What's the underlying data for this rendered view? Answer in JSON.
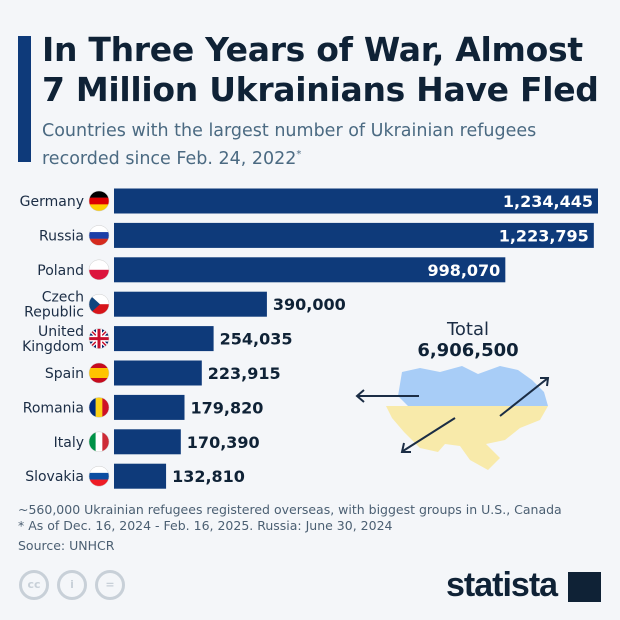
{
  "header": {
    "title_line1": "In Three Years of War, Almost",
    "title_line2": "7 Million Ukrainians Have Fled",
    "subtitle_line1": "Countries with the largest number of Ukrainian refugees",
    "subtitle_line2": "recorded since Feb. 24, 2022",
    "subtitle_mark": "*"
  },
  "chart_data": {
    "type": "bar",
    "orientation": "horizontal",
    "categories": [
      "Germany",
      "Russia",
      "Poland",
      "Czech Republic",
      "United Kingdom",
      "Spain",
      "Romania",
      "Italy",
      "Slovakia"
    ],
    "values": [
      1234445,
      1223795,
      998070,
      390000,
      254035,
      223915,
      179820,
      170390,
      132810
    ],
    "value_labels": [
      "1,234,445",
      "1,223,795",
      "998,070",
      "390,000",
      "254,035",
      "223,915",
      "179,820",
      "170,390",
      "132,810"
    ],
    "bar_color": "#0e3a7a",
    "annotation_label": "Total",
    "annotation_value": "6,906,500"
  },
  "footer": {
    "note1": "~560,000 Ukrainian refugees registered overseas, with biggest groups in U.S., Canada",
    "note2": "* As of Dec. 16, 2024 - Feb. 16, 2025. Russia: June 30, 2024",
    "source": "Source: UNHCR",
    "logo": "statista",
    "cc": [
      "cc",
      "i",
      "="
    ]
  }
}
